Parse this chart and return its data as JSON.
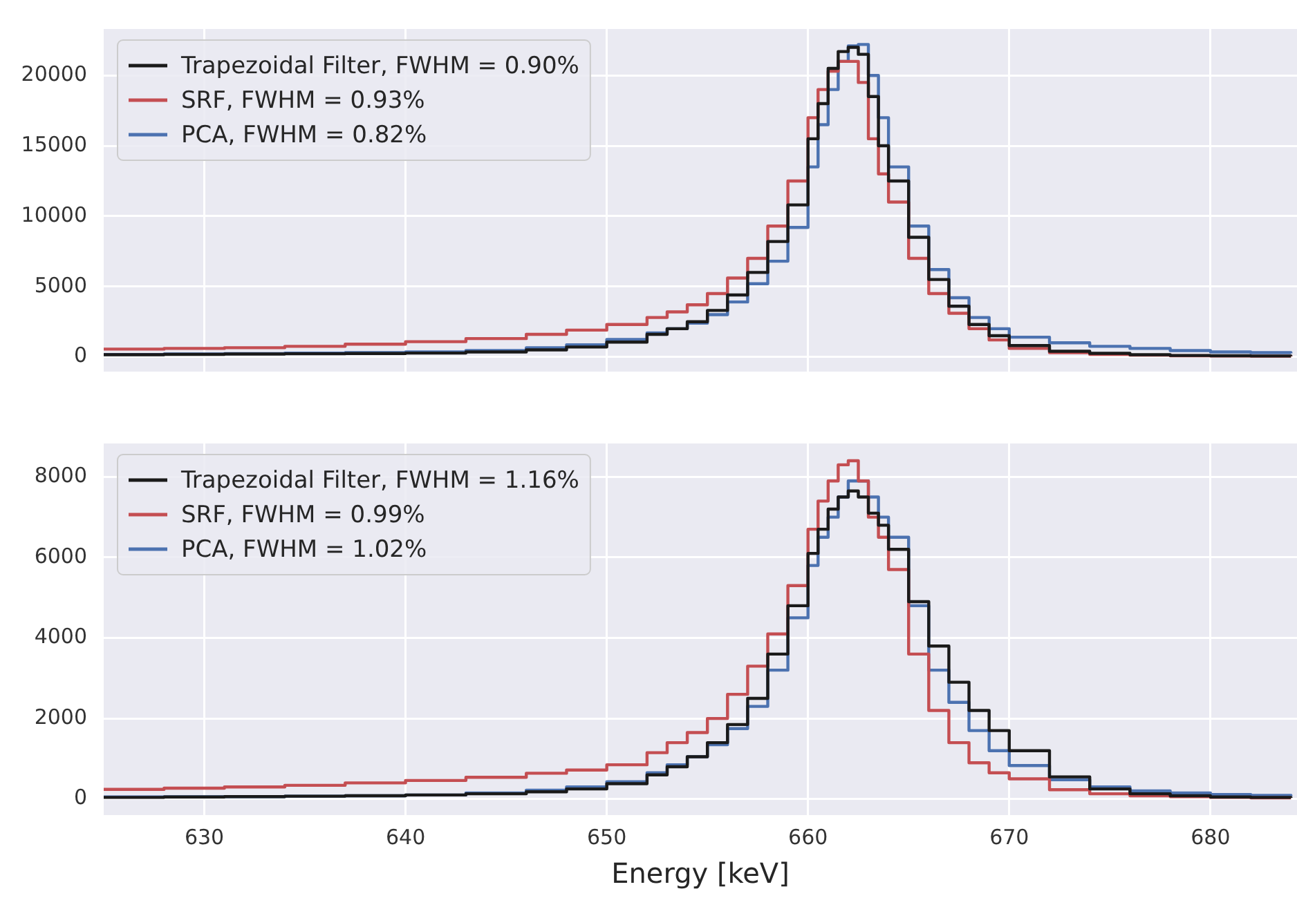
{
  "chart_data": [
    {
      "type": "step",
      "x": [
        625,
        628,
        631,
        634,
        637,
        640,
        643,
        646,
        648,
        650,
        652,
        653,
        654,
        655,
        656,
        657,
        658,
        659,
        660,
        660.5,
        661,
        661.5,
        662,
        662.5,
        663,
        663.5,
        664,
        665,
        666,
        667,
        668,
        669,
        670,
        672,
        674,
        676,
        678,
        680,
        682,
        684
      ],
      "series": [
        {
          "name": "Trapezoidal Filter, FWHM = 0.90%",
          "color": "#1a1a1a",
          "values": [
            150,
            180,
            200,
            220,
            240,
            270,
            350,
            500,
            700,
            1050,
            1600,
            2000,
            2500,
            3300,
            4400,
            6000,
            8200,
            10800,
            15500,
            18000,
            20500,
            21700,
            22000,
            21500,
            18500,
            15000,
            12500,
            8500,
            5500,
            3600,
            2300,
            1500,
            800,
            400,
            250,
            150,
            100,
            80,
            60,
            50
          ]
        },
        {
          "name": "SRF, FWHM = 0.93%",
          "color": "#c44e52",
          "values": [
            550,
            600,
            650,
            750,
            900,
            1080,
            1300,
            1600,
            1900,
            2300,
            2800,
            3200,
            3700,
            4500,
            5600,
            7000,
            9300,
            12500,
            17000,
            19000,
            20300,
            21000,
            21000,
            19500,
            15500,
            13000,
            11000,
            7000,
            4500,
            3100,
            2000,
            1200,
            600,
            300,
            180,
            120,
            80,
            60,
            50,
            40
          ]
        },
        {
          "name": "PCA, FWHM = 0.82%",
          "color": "#4c72b0",
          "values": [
            170,
            200,
            230,
            260,
            300,
            350,
            450,
            650,
            850,
            1230,
            1700,
            2000,
            2400,
            3000,
            3900,
            5200,
            6800,
            9200,
            13500,
            16500,
            19000,
            21000,
            22100,
            22200,
            20000,
            17000,
            13500,
            9300,
            6200,
            4200,
            2800,
            2000,
            1400,
            1000,
            750,
            600,
            450,
            350,
            300,
            250
          ]
        }
      ],
      "xlim": [
        625,
        684.3
      ],
      "xticks": [
        630,
        640,
        650,
        660,
        670,
        680
      ],
      "ylim": [
        -1050,
        23300
      ],
      "yticks": [
        0,
        5000,
        10000,
        15000,
        20000
      ],
      "grid": true,
      "legend": "top left",
      "tick_labels": "y"
    },
    {
      "type": "step",
      "xlabel": "Energy [keV]",
      "x": [
        625,
        628,
        631,
        634,
        637,
        640,
        643,
        646,
        648,
        650,
        652,
        653,
        654,
        655,
        656,
        657,
        658,
        659,
        660,
        660.5,
        661,
        661.5,
        662,
        662.5,
        663,
        663.5,
        664,
        665,
        666,
        667,
        668,
        669,
        670,
        672,
        674,
        676,
        678,
        680,
        682,
        684
      ],
      "series": [
        {
          "name": "Trapezoidal Filter, FWHM = 1.16%",
          "color": "#1a1a1a",
          "values": [
            40,
            50,
            60,
            70,
            80,
            100,
            130,
            180,
            250,
            380,
            600,
            800,
            1050,
            1400,
            1850,
            2500,
            3600,
            4800,
            6100,
            6700,
            7200,
            7500,
            7650,
            7500,
            7100,
            6800,
            6200,
            4900,
            3800,
            2900,
            2200,
            1700,
            1200,
            550,
            250,
            130,
            80,
            50,
            40,
            30
          ]
        },
        {
          "name": "SRF, FWHM = 0.99%",
          "color": "#c44e52",
          "values": [
            240,
            270,
            300,
            340,
            400,
            460,
            540,
            640,
            720,
            850,
            1150,
            1400,
            1650,
            2000,
            2600,
            3300,
            4100,
            5300,
            6700,
            7400,
            7900,
            8300,
            8400,
            7900,
            7000,
            6500,
            5700,
            3600,
            2200,
            1400,
            900,
            650,
            500,
            230,
            130,
            80,
            60,
            40,
            30,
            30
          ]
        },
        {
          "name": "PCA, FWHM = 1.02%",
          "color": "#4c72b0",
          "values": [
            50,
            55,
            60,
            70,
            80,
            100,
            150,
            220,
            300,
            430,
            650,
            850,
            1050,
            1350,
            1750,
            2300,
            3200,
            4500,
            5800,
            6500,
            7000,
            7500,
            7900,
            7900,
            7500,
            7000,
            6500,
            4800,
            3200,
            2400,
            1700,
            1200,
            830,
            480,
            300,
            200,
            150,
            110,
            90,
            70
          ]
        }
      ],
      "xlim": [
        625,
        684.3
      ],
      "xticks": [
        630,
        640,
        650,
        660,
        670,
        680
      ],
      "ylim": [
        -400,
        8830
      ],
      "yticks": [
        0,
        2000,
        4000,
        6000,
        8000
      ],
      "grid": true,
      "legend": "top left"
    }
  ]
}
